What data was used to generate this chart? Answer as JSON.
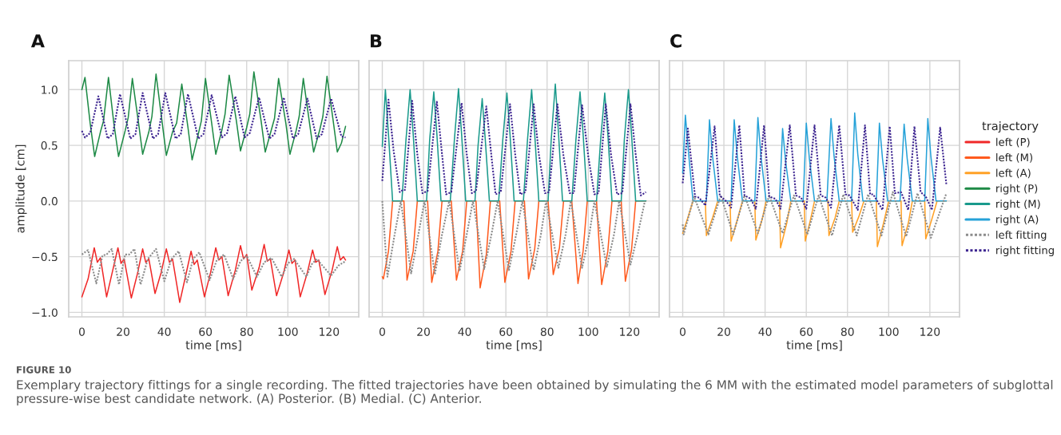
{
  "chart_data": [
    {
      "type": "line",
      "title": "A",
      "xlabel": "time [ms]",
      "ylabel": "amplitude [cm]",
      "xlim": [
        -6.4,
        134.4
      ],
      "ylim": [
        -1.04,
        1.26
      ],
      "xticks": [
        0,
        20,
        40,
        60,
        80,
        100,
        120
      ],
      "yticks": [
        {
          "value": -1.0,
          "label": "−1.0"
        },
        {
          "value": -0.5,
          "label": "−0.5"
        },
        {
          "value": 0.0,
          "label": "0.0"
        },
        {
          "value": 0.5,
          "label": "0.5"
        },
        {
          "value": 1.0,
          "label": "1.0"
        }
      ],
      "grid": true,
      "legend": "right",
      "annotations": [
        "FIGURE 10",
        "Exemplary trajectory fittings for a single recording. The fitted trajectories have been obtained by simulating the 6 MM with the estimated model parameters of subglottal pressure-wise best candidate network. (A) Posterior. (B) Medial. (C) Anterior."
      ],
      "series": [
        {
          "name": "left (P)",
          "color": "#f02828",
          "line_style": "solid",
          "x": [
            0,
            3,
            6,
            7.5,
            9,
            12,
            15,
            17.5,
            19,
            20.5,
            24,
            27,
            29.5,
            31,
            32.5,
            35.5,
            38.5,
            41,
            42.5,
            44,
            47.5,
            50.5,
            53,
            54.5,
            56,
            59.5,
            62.5,
            65,
            66.5,
            68,
            71,
            74.5,
            77,
            78.5,
            80,
            82.5,
            86,
            88.5,
            90,
            91.5,
            94.5,
            98,
            100.5,
            102,
            103.5,
            106,
            109.5,
            112,
            113.5,
            115,
            118,
            121.5,
            124,
            125.5,
            127,
            128
          ],
          "values": [
            -0.86,
            -0.7,
            -0.42,
            -0.55,
            -0.51,
            -0.86,
            -0.62,
            -0.42,
            -0.56,
            -0.52,
            -0.87,
            -0.65,
            -0.43,
            -0.55,
            -0.52,
            -0.83,
            -0.64,
            -0.43,
            -0.55,
            -0.52,
            -0.91,
            -0.66,
            -0.45,
            -0.57,
            -0.53,
            -0.86,
            -0.64,
            -0.42,
            -0.53,
            -0.5,
            -0.85,
            -0.62,
            -0.4,
            -0.52,
            -0.48,
            -0.8,
            -0.6,
            -0.39,
            -0.54,
            -0.52,
            -0.85,
            -0.64,
            -0.44,
            -0.56,
            -0.53,
            -0.86,
            -0.64,
            -0.44,
            -0.55,
            -0.53,
            -0.84,
            -0.62,
            -0.41,
            -0.53,
            -0.5,
            -0.53
          ]
        },
        {
          "name": "right (P)",
          "color": "#1e8a46",
          "line_style": "solid",
          "x": [
            0,
            1.5,
            4,
            6.2,
            9,
            10.5,
            12.9,
            15.5,
            17.8,
            21,
            22.5,
            24.5,
            27.5,
            29.5,
            32.5,
            34,
            36,
            39,
            41,
            44,
            46,
            48.5,
            51.5,
            53.5,
            56.5,
            58,
            60,
            63,
            65,
            68,
            69.5,
            71.5,
            75,
            77,
            80,
            81.5,
            83.5,
            87,
            89,
            92,
            93.5,
            95.5,
            99,
            101,
            104,
            105.5,
            107.5,
            110.5,
            112.5,
            115.5,
            117,
            119,
            122,
            124,
            126,
            128
          ],
          "values": [
            1.0,
            1.11,
            0.7,
            0.4,
            0.62,
            0.72,
            1.11,
            0.7,
            0.4,
            0.63,
            0.75,
            1.1,
            0.7,
            0.42,
            0.62,
            0.76,
            1.14,
            0.7,
            0.41,
            0.62,
            0.7,
            1.05,
            0.66,
            0.37,
            0.6,
            0.72,
            1.1,
            0.7,
            0.42,
            0.64,
            0.78,
            1.13,
            0.72,
            0.45,
            0.66,
            0.78,
            1.16,
            0.72,
            0.44,
            0.64,
            0.74,
            1.1,
            0.7,
            0.42,
            0.63,
            0.76,
            1.1,
            0.7,
            0.44,
            0.64,
            0.76,
            1.12,
            0.72,
            0.44,
            0.52,
            0.67
          ]
        },
        {
          "name": "left fitting",
          "color": "#8c8c8c",
          "line_style": "dotted",
          "x": [
            0,
            3,
            7,
            10,
            12,
            14.5,
            18,
            21,
            23,
            25.5,
            28.5,
            32,
            36,
            40,
            43.5,
            47,
            51,
            54,
            57,
            62,
            65.5,
            69,
            73.5,
            77,
            80,
            85,
            88.5,
            92,
            97,
            100,
            103,
            109,
            111.5,
            114,
            121,
            124.5,
            128
          ],
          "values": [
            -0.48,
            -0.44,
            -0.74,
            -0.49,
            -0.48,
            -0.43,
            -0.75,
            -0.48,
            -0.48,
            -0.43,
            -0.75,
            -0.52,
            -0.43,
            -0.72,
            -0.52,
            -0.45,
            -0.73,
            -0.52,
            -0.46,
            -0.71,
            -0.53,
            -0.48,
            -0.7,
            -0.54,
            -0.49,
            -0.68,
            -0.55,
            -0.51,
            -0.68,
            -0.56,
            -0.52,
            -0.68,
            -0.57,
            -0.52,
            -0.67,
            -0.58,
            -0.54
          ]
        },
        {
          "name": "right fitting",
          "color": "#3c2490",
          "line_style": "dotted",
          "x": [
            0,
            1.5,
            4,
            8,
            12.5,
            15,
            18.5,
            23.5,
            26,
            29.5,
            34.5,
            37,
            40.5,
            45.5,
            48,
            51.5,
            56.5,
            59,
            63,
            68,
            70.5,
            74.5,
            79,
            81.5,
            86,
            91,
            93.5,
            98,
            102.5,
            105,
            109.5,
            114,
            116.5,
            121,
            126,
            128
          ],
          "values": [
            0.63,
            0.57,
            0.61,
            0.94,
            0.56,
            0.6,
            0.96,
            0.56,
            0.6,
            0.97,
            0.56,
            0.6,
            0.97,
            0.56,
            0.6,
            0.96,
            0.56,
            0.6,
            0.95,
            0.57,
            0.61,
            0.94,
            0.57,
            0.61,
            0.93,
            0.56,
            0.6,
            0.93,
            0.56,
            0.6,
            0.92,
            0.56,
            0.6,
            0.92,
            0.58,
            0.57
          ]
        }
      ]
    },
    {
      "type": "line",
      "title": "B",
      "xlabel": "time [ms]",
      "xlim": [
        -6.4,
        134.4
      ],
      "ylim": [
        -1.04,
        1.26
      ],
      "xticks": [
        0,
        20,
        40,
        60,
        80,
        100,
        120
      ],
      "yticks": [
        {
          "value": -1.0,
          "label": null
        },
        {
          "value": -0.5,
          "label": null
        },
        {
          "value": 0.0,
          "label": null
        },
        {
          "value": 0.5,
          "label": null
        },
        {
          "value": 1.0,
          "label": null
        }
      ],
      "tick_labels": "x",
      "grid": true,
      "legend": "right",
      "series": [
        {
          "name": "left (M)",
          "color": "#ff5a1e",
          "line_style": "solid",
          "x": [
            0,
            0.5,
            3,
            5,
            10.5,
            12,
            15,
            17,
            22,
            24,
            27,
            29,
            33.5,
            36,
            39,
            41,
            45.5,
            47.5,
            50.5,
            52.5,
            57,
            59.5,
            62.5,
            64.5,
            69,
            71,
            74,
            76,
            80.5,
            83,
            86,
            88,
            92,
            95,
            97.5,
            99.5,
            104,
            106.5,
            109.5,
            111.5,
            116,
            118,
            121,
            123,
            128
          ],
          "values": [
            -0.68,
            -0.7,
            -0.45,
            0,
            0,
            -0.71,
            -0.45,
            0,
            0,
            -0.73,
            -0.45,
            0,
            0,
            -0.71,
            -0.45,
            0,
            0,
            -0.78,
            -0.48,
            0,
            0,
            -0.73,
            -0.45,
            0,
            0,
            -0.7,
            -0.43,
            0,
            0,
            -0.66,
            -0.42,
            0,
            0,
            -0.74,
            -0.45,
            0,
            0,
            -0.75,
            -0.45,
            0,
            0,
            -0.72,
            -0.44,
            0,
            0
          ]
        },
        {
          "name": "right (M)",
          "color": "#1a9a8c",
          "line_style": "solid",
          "x": [
            0,
            1.5,
            3,
            5,
            9.5,
            11.5,
            13.5,
            15,
            17,
            21.5,
            23,
            25,
            26.5,
            28.5,
            33,
            35,
            37,
            38.5,
            40.5,
            45,
            46.5,
            48.5,
            50,
            52,
            56.5,
            58.5,
            60.5,
            62,
            64,
            68.5,
            70.5,
            72.5,
            74,
            76,
            80.5,
            82,
            84,
            85.5,
            87.5,
            92,
            94,
            96,
            97.5,
            99.5,
            104,
            106,
            108,
            109.5,
            111.5,
            116,
            117.5,
            119.5,
            121,
            123,
            128
          ],
          "values": [
            0.49,
            1.0,
            0.6,
            0,
            0,
            0.55,
            1.0,
            0.6,
            0,
            0,
            0.55,
            0.98,
            0.6,
            0,
            0,
            0.55,
            1.01,
            0.6,
            0,
            0,
            0.5,
            0.92,
            0.55,
            0,
            0,
            0.55,
            0.97,
            0.6,
            0,
            0,
            0.55,
            1.0,
            0.6,
            0,
            0,
            0.55,
            1.05,
            0.62,
            0,
            0,
            0.55,
            0.98,
            0.6,
            0,
            0,
            0.55,
            0.97,
            0.6,
            0,
            0,
            0.55,
            1.0,
            0.6,
            0,
            0
          ]
        },
        {
          "name": "left fitting",
          "color": "#8c8c8c",
          "line_style": "dotted",
          "x": [
            0,
            2.5,
            6,
            9,
            14,
            17.5,
            20.5,
            25.5,
            29,
            32.5,
            37.5,
            41,
            44,
            49.5,
            53,
            56,
            61.5,
            65,
            68,
            73.5,
            77,
            79.5,
            85.5,
            89,
            91.5,
            97,
            100.5,
            103,
            109,
            112.5,
            115,
            120.5,
            124,
            127.5
          ],
          "values": [
            0,
            -0.68,
            -0.3,
            0,
            -0.65,
            -0.3,
            0,
            -0.66,
            -0.3,
            0,
            -0.63,
            -0.3,
            0,
            -0.61,
            -0.3,
            0,
            -0.62,
            -0.3,
            0,
            -0.62,
            -0.3,
            0,
            -0.6,
            -0.3,
            0,
            -0.6,
            -0.3,
            0,
            -0.59,
            -0.3,
            0,
            -0.57,
            -0.3,
            0
          ]
        },
        {
          "name": "right fitting",
          "color": "#3c2490",
          "line_style": "dotted",
          "x": [
            0,
            3,
            5.5,
            8.5,
            10,
            11,
            14.5,
            17,
            19.5,
            22,
            26.5,
            29,
            31,
            33.5,
            38.5,
            41,
            43.5,
            45.5,
            50.5,
            53,
            55,
            57.5,
            62,
            64.5,
            67,
            69.5,
            73.5,
            76,
            79,
            81,
            85,
            88,
            91,
            93,
            97,
            100,
            103,
            105,
            108.5,
            111,
            114,
            116.5,
            120.5,
            123,
            125.5,
            128
          ],
          "values": [
            0.18,
            0.91,
            0.45,
            0.08,
            0.1,
            0.1,
            0.9,
            0.42,
            0.07,
            0.09,
            0.89,
            0.42,
            0.06,
            0.08,
            0.88,
            0.42,
            0.07,
            0.09,
            0.85,
            0.4,
            0.06,
            0.08,
            0.87,
            0.42,
            0.06,
            0.08,
            0.87,
            0.42,
            0.07,
            0.08,
            0.87,
            0.4,
            0.07,
            0.07,
            0.86,
            0.4,
            0.06,
            0.07,
            0.87,
            0.42,
            0.06,
            0.07,
            0.87,
            0.42,
            0.05,
            0.08
          ]
        }
      ]
    },
    {
      "type": "line",
      "title": "C",
      "xlabel": "time [ms]",
      "xlim": [
        -6.4,
        134.4
      ],
      "ylim": [
        -1.04,
        1.26
      ],
      "xticks": [
        0,
        20,
        40,
        60,
        80,
        100,
        120
      ],
      "yticks": [
        {
          "value": -1.0,
          "label": null
        },
        {
          "value": -0.5,
          "label": null
        },
        {
          "value": 0.0,
          "label": null
        },
        {
          "value": 0.5,
          "label": null
        },
        {
          "value": 1.0,
          "label": null
        }
      ],
      "tick_labels": "x",
      "grid": true,
      "legend": "right",
      "legend_title": "trajectory",
      "series": [
        {
          "name": "left (A)",
          "color": "#ffa126",
          "line_style": "solid",
          "x": [
            0,
            2.5,
            5,
            11,
            11.5,
            14.5,
            17,
            23,
            23.5,
            26.5,
            29,
            35,
            35.5,
            38.5,
            40.5,
            47,
            47.5,
            50.5,
            52.5,
            59,
            59.5,
            62,
            64,
            70.5,
            71,
            74,
            76,
            82,
            82.5,
            85.5,
            88,
            94,
            94.5,
            97.5,
            100,
            106,
            106.5,
            109.5,
            111.5,
            117.5,
            118,
            121,
            123.5,
            128
          ],
          "values": [
            -0.29,
            -0.15,
            0,
            0,
            -0.31,
            -0.15,
            0,
            0,
            -0.36,
            -0.17,
            0,
            0,
            -0.35,
            -0.17,
            0,
            0,
            -0.42,
            -0.2,
            0,
            0,
            -0.36,
            -0.17,
            0,
            0,
            -0.31,
            -0.15,
            0,
            0,
            -0.28,
            -0.14,
            0,
            0,
            -0.41,
            -0.2,
            0,
            0,
            -0.4,
            -0.2,
            0,
            0,
            -0.34,
            -0.16,
            0,
            0
          ]
        },
        {
          "name": "right (A)",
          "color": "#26a2d8",
          "line_style": "solid",
          "x": [
            0,
            1.3,
            3,
            5,
            11.5,
            13,
            14.5,
            17,
            23.5,
            25,
            26.5,
            29,
            35,
            36.5,
            38,
            40.5,
            47,
            48.5,
            50,
            52.5,
            58.5,
            60,
            61.5,
            64,
            70,
            72,
            73.5,
            76,
            82,
            83.5,
            85,
            87.5,
            94,
            95.5,
            97,
            99.5,
            105.5,
            107.5,
            109,
            111.5,
            117.5,
            119,
            120.5,
            123,
            128
          ],
          "values": [
            0.25,
            0.77,
            0.4,
            0,
            0,
            0.73,
            0.4,
            0,
            0,
            0.73,
            0.4,
            0,
            0,
            0.75,
            0.4,
            0,
            0,
            0.65,
            0.35,
            0,
            0,
            0.7,
            0.38,
            0,
            0,
            0.74,
            0.4,
            0,
            0,
            0.79,
            0.42,
            0,
            0,
            0.7,
            0.38,
            0,
            0,
            0.69,
            0.38,
            0,
            0,
            0.74,
            0.4,
            0,
            0
          ]
        },
        {
          "name": "left fitting",
          "color": "#8c8c8c",
          "line_style": "dotted",
          "x": [
            0,
            0.5,
            5.5,
            12.5,
            18.5,
            24.5,
            30,
            36.5,
            42,
            48.5,
            54,
            60.5,
            66,
            72.5,
            78,
            84.5,
            90,
            96.5,
            102,
            108.5,
            114,
            120.5,
            128
          ],
          "values": [
            -0.21,
            -0.3,
            0.04,
            -0.3,
            0.05,
            -0.3,
            0.05,
            -0.29,
            0.05,
            -0.29,
            0.05,
            -0.3,
            0.05,
            -0.31,
            0.06,
            -0.31,
            0.06,
            -0.31,
            0.08,
            -0.32,
            0.07,
            -0.33,
            0.07
          ]
        },
        {
          "name": "right fitting",
          "color": "#3c2490",
          "line_style": "dotted",
          "x": [
            0,
            2.5,
            6,
            8,
            11,
            15.5,
            18,
            21,
            23.5,
            27.5,
            30,
            33,
            35.5,
            39.5,
            42,
            45,
            47.5,
            52,
            55,
            57.5,
            60,
            64,
            67,
            69.5,
            72,
            76,
            79,
            81,
            85,
            88.5,
            91,
            92.5,
            97,
            100.5,
            103,
            106,
            109.5,
            112.5,
            115.5,
            118,
            121,
            125,
            128
          ],
          "values": [
            0.16,
            0.65,
            0.04,
            0.03,
            -0.04,
            0.67,
            0.05,
            0.0,
            -0.06,
            0.68,
            0.05,
            0.02,
            -0.07,
            0.68,
            0.04,
            0.02,
            -0.07,
            0.68,
            0.05,
            0.03,
            -0.07,
            0.68,
            0.05,
            0.03,
            -0.06,
            0.68,
            0.06,
            0.05,
            -0.08,
            0.68,
            0.06,
            0.06,
            -0.08,
            0.67,
            0.07,
            0.08,
            -0.08,
            0.67,
            0.08,
            0.04,
            -0.08,
            0.66,
            0.15
          ]
        }
      ]
    }
  ]
}
